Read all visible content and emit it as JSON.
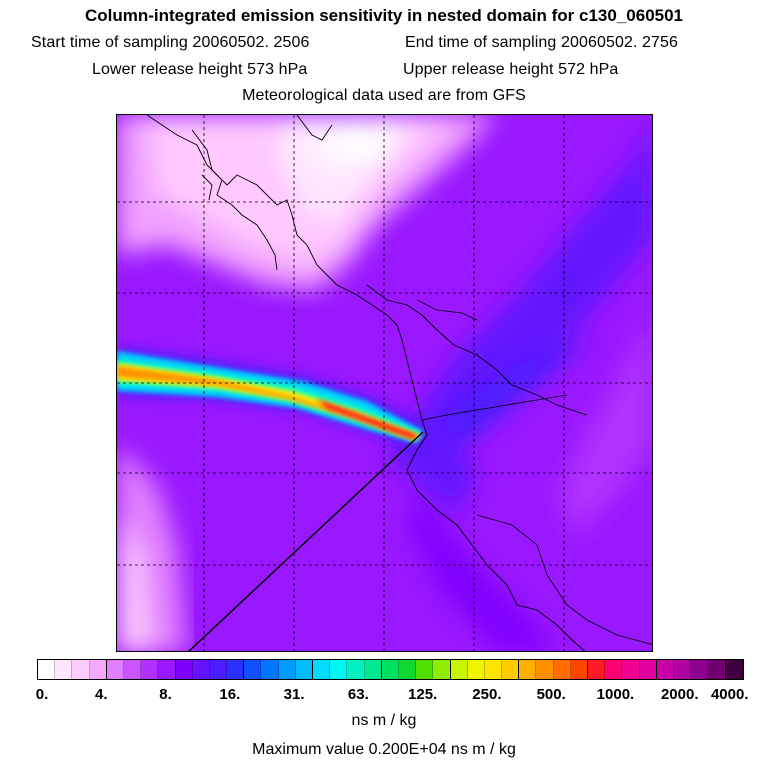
{
  "header": {
    "title": "Column-integrated emission sensitivity in nested domain for c130_060501",
    "start_label": "Start time of sampling 20060502.  2506",
    "end_label": "End time of sampling 20060502.  2756",
    "lower_label": "Lower release height  573 hPa",
    "upper_label": "Upper release height  572 hPa",
    "met_label": "Meteorological data used are from GFS"
  },
  "legend": {
    "tick_labels": [
      "0.",
      "4.",
      "8.",
      "16.",
      "31.",
      "63.",
      "125.",
      "250.",
      "500.",
      "1000.",
      "2000.",
      "4000."
    ],
    "colors": [
      "#ffffff",
      "#ffe6ff",
      "#ffccff",
      "#f5a8ff",
      "#e080ff",
      "#cc55ff",
      "#b030ff",
      "#9a18ff",
      "#8000ff",
      "#6414ff",
      "#4a1cff",
      "#2a30ff",
      "#1050ff",
      "#0076ff",
      "#009cff",
      "#00bcff",
      "#00dcff",
      "#00f6f0",
      "#00f0c0",
      "#00e890",
      "#00e060",
      "#10d830",
      "#50e000",
      "#90ec00",
      "#c8f400",
      "#f0f400",
      "#ffe400",
      "#ffcc00",
      "#ffb000",
      "#ff9000",
      "#ff6c00",
      "#ff4400",
      "#ff1a28",
      "#ff0070",
      "#f00090",
      "#e000a0",
      "#c800a8",
      "#b000a0",
      "#900090",
      "#700070",
      "#400040"
    ],
    "units": "ns m / kg",
    "max_value": "Maximum value  0.200E+04 ns m / kg"
  },
  "map": {
    "background_color": "#9a18ff",
    "plume_colors": [
      "#00ccff",
      "#00ffcc",
      "#fff000",
      "#ff9000",
      "#ff2020"
    ]
  }
}
